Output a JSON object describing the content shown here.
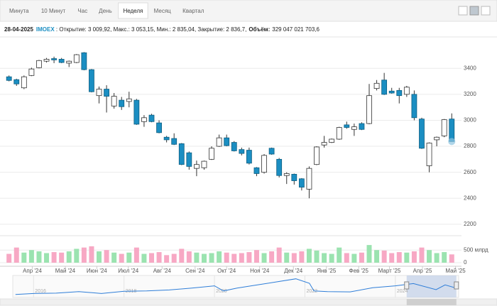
{
  "tabs": [
    "Минута",
    "10 Минут",
    "Час",
    "День",
    "Неделя",
    "Месяц",
    "Квартал"
  ],
  "active_tab": 4,
  "header": {
    "date": "28-04-2025",
    "ticker": "IMOEX",
    "quote": " : Открытие: 3 009,92, Макс.: 3 053,15, Мин.: 2 835,04, Закрытие: 2 836,7,",
    "volume_label": "Объём:",
    "volume_value": "329 047 021 703,6"
  },
  "chart_data": {
    "type": "candlestick",
    "open": [
      3335,
      3313,
      3250,
      3345,
      3405,
      3455,
      3475,
      3470,
      3440,
      3445,
      3520,
      3390,
      3190,
      3240,
      3110,
      3155,
      3145,
      3155,
      2990,
      3040,
      2980,
      2870,
      2860,
      2820,
      2750,
      2630,
      2635,
      2700,
      2800,
      2865,
      2830,
      2775,
      2770,
      2635,
      2600,
      2785,
      2700,
      2575,
      2585,
      2550,
      2470,
      2660,
      2810,
      2830,
      2855,
      2965,
      2930,
      2975,
      2975,
      3245,
      3310,
      3225,
      3230,
      3200,
      3200,
      3010,
      2650,
      2850,
      2880,
      3009.92
    ],
    "high": [
      3345,
      3320,
      3345,
      3405,
      3465,
      3480,
      3490,
      3480,
      3460,
      3510,
      3525,
      3395,
      3260,
      3270,
      3210,
      3180,
      3220,
      3165,
      3040,
      3050,
      3000,
      2880,
      2900,
      2825,
      2760,
      2690,
      2690,
      2800,
      2890,
      2890,
      2840,
      2790,
      2790,
      2640,
      2740,
      2790,
      2710,
      2600,
      2590,
      2555,
      2645,
      2800,
      2880,
      2860,
      2950,
      2990,
      2975,
      2985,
      3280,
      3310,
      3365,
      3250,
      3250,
      3265,
      3230,
      3020,
      2830,
      2875,
      3010,
      3053.15
    ],
    "low": [
      3300,
      3265,
      3240,
      3340,
      3400,
      3445,
      3440,
      3440,
      3410,
      3440,
      3385,
      3215,
      3130,
      3060,
      3090,
      3080,
      3100,
      2965,
      2950,
      2985,
      2900,
      2830,
      2810,
      2655,
      2620,
      2570,
      2620,
      2695,
      2795,
      2800,
      2760,
      2730,
      2660,
      2570,
      2590,
      2735,
      2560,
      2510,
      2505,
      2460,
      2400,
      2655,
      2790,
      2825,
      2850,
      2935,
      2880,
      2925,
      2970,
      3230,
      3195,
      3205,
      3130,
      3180,
      3000,
      2780,
      2600,
      2800,
      2870,
      2835.04
    ],
    "close": [
      3307,
      3280,
      3335,
      3395,
      3460,
      3470,
      3465,
      3445,
      3455,
      3505,
      3390,
      3220,
      3240,
      3185,
      3185,
      3105,
      3165,
      2970,
      3020,
      2990,
      2905,
      2850,
      2815,
      2660,
      2645,
      2660,
      2685,
      2785,
      2865,
      2805,
      2765,
      2745,
      2670,
      2590,
      2730,
      2740,
      2575,
      2590,
      2535,
      2485,
      2630,
      2795,
      2830,
      2855,
      2945,
      2945,
      2950,
      2930,
      3190,
      3285,
      3200,
      3210,
      3190,
      3255,
      3020,
      2785,
      2825,
      2870,
      3005,
      2836.7
    ],
    "volume": [
      350,
      600,
      400,
      500,
      450,
      380,
      420,
      400,
      450,
      550,
      600,
      650,
      450,
      500,
      400,
      350,
      400,
      600,
      350,
      380,
      420,
      300,
      350,
      550,
      450,
      400,
      350,
      380,
      450,
      400,
      350,
      380,
      420,
      500,
      380,
      450,
      600,
      400,
      380,
      450,
      550,
      480,
      380,
      350,
      600,
      380,
      350,
      400,
      700,
      500,
      480,
      380,
      420,
      400,
      450,
      600,
      500,
      380,
      420,
      329
    ],
    "ylim": [
      2150,
      3620
    ],
    "yticks": [
      2200,
      2400,
      2600,
      2800,
      3000,
      3200,
      3400
    ],
    "volume_ylim": [
      0,
      900
    ],
    "volume_ticks": [
      0,
      {
        "value": 500,
        "label": "500 млрд"
      }
    ],
    "xlim": [
      -1.2,
      60.3
    ],
    "xticks": [
      {
        "value": 3.1,
        "label": "Апр '24"
      },
      {
        "value": 7.5,
        "label": "Май '24"
      },
      {
        "value": 11.7,
        "label": "Июн '24"
      },
      {
        "value": 15.9,
        "label": "Июл '24"
      },
      {
        "value": 20.4,
        "label": "Авг '24"
      },
      {
        "value": 24.8,
        "label": "Сен '24"
      },
      {
        "value": 29,
        "label": "Окт '24"
      },
      {
        "value": 33.4,
        "label": "Ноя '24"
      },
      {
        "value": 37.9,
        "label": "Дек '24"
      },
      {
        "value": 42.3,
        "label": "Янв '25"
      },
      {
        "value": 46.6,
        "label": "Фев '25"
      },
      {
        "value": 50.7,
        "label": "Март '25"
      },
      {
        "value": 55.1,
        "label": "Апр '25"
      },
      {
        "value": 59.5,
        "label": "Май '25"
      }
    ],
    "grid": true,
    "up_color": "#ffffff",
    "down_color": "#1b8ec2",
    "volume_up_color": "#9be3b0",
    "volume_down_color": "#f7a8c4",
    "navigator": {
      "x": [
        2015.6,
        2016,
        2016.5,
        2017,
        2017.5,
        2018,
        2018.5,
        2019,
        2019.5,
        2020,
        2020.2,
        2020.5,
        2021,
        2021.8,
        2022.1,
        2022.2,
        2022.5,
        2023,
        2023.5,
        2024,
        2024.4,
        2024.9,
        2025.1,
        2025.3
      ],
      "values": [
        1750,
        1900,
        1950,
        2200,
        1900,
        2250,
        2300,
        2450,
        2750,
        3100,
        2300,
        2750,
        3300,
        4200,
        3500,
        2300,
        2200,
        2150,
        2800,
        3100,
        3450,
        2500,
        3250,
        2850
      ],
      "xlim": [
        2015.54,
        2025.4
      ],
      "ylim": [
        1500,
        4500
      ],
      "xticks": [
        2016,
        2018,
        2020,
        2022,
        2024
      ],
      "color": "#2f7ed8",
      "range": [
        2024.25,
        2025.35
      ]
    }
  }
}
